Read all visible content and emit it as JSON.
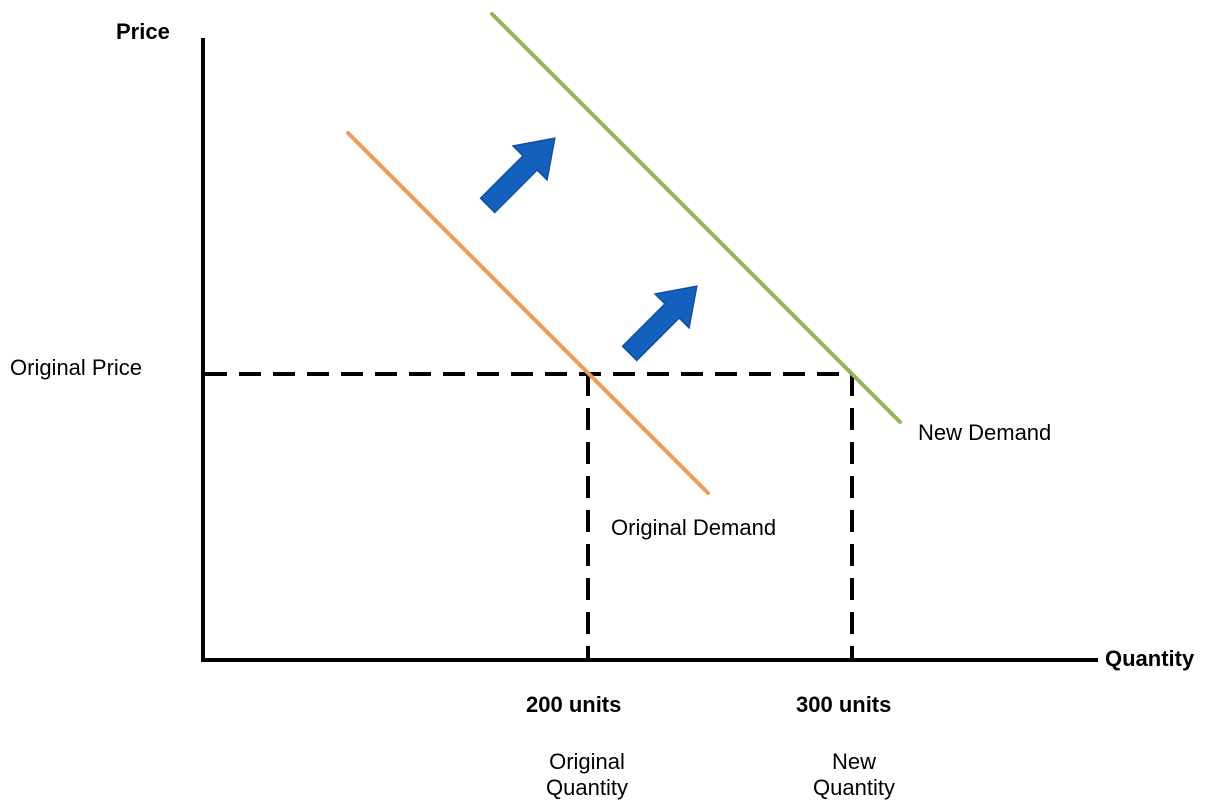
{
  "diagram": {
    "y_axis_label": "Price",
    "x_axis_label": "Quantity",
    "price_label": "Original Price",
    "original_demand_label": "Original Demand",
    "new_demand_label": "New Demand",
    "tick_200": "200 units",
    "tick_300": "300 units",
    "original_quantity_line1": "Original",
    "original_quantity_line2": "Quantity",
    "new_quantity_line1": "New",
    "new_quantity_line2": "Quantity"
  },
  "colors": {
    "original_demand": "#ED9A5C",
    "new_demand": "#92B558",
    "arrow": "#1560BD",
    "axis": "#000000",
    "dashed": "#000000"
  },
  "icons": {
    "shift_arrow": "arrow-up-right-icon"
  }
}
